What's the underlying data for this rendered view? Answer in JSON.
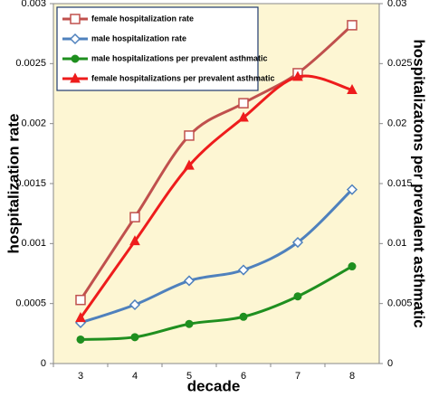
{
  "chart_data": {
    "type": "line",
    "xlabel": "decade",
    "ylabel": "hospitalization rate",
    "y2label": "hospitalizatons per prevalent asthmatic",
    "categories": [
      "3",
      "4",
      "5",
      "6",
      "7",
      "8"
    ],
    "ylim": [
      0,
      0.003
    ],
    "yticks": [
      0,
      0.0005,
      0.001,
      0.0015,
      0.002,
      0.0025,
      0.003
    ],
    "y2lim": [
      0,
      0.03
    ],
    "y2ticks": [
      0,
      0.005,
      0.01,
      0.015,
      0.02,
      0.025,
      0.03
    ],
    "legend": "upper left",
    "background": "#fdf6d3",
    "series": [
      {
        "name": "female hospitalization rate",
        "color": "#c0504d",
        "marker": "square",
        "values": [
          0.00053,
          0.00122,
          0.0019,
          0.00217,
          0.00242,
          0.00282
        ]
      },
      {
        "name": "male hospitalization rate",
        "color": "#4f81bd",
        "marker": "diamond",
        "values": [
          0.00034,
          0.00049,
          0.00069,
          0.00078,
          0.00101,
          0.00145
        ]
      },
      {
        "name": "male hospitalizations per prevalent asthmatic",
        "color": "#1f8f1f",
        "marker": "circle",
        "axis": "y2",
        "values": [
          0.002,
          0.0022,
          0.0033,
          0.0039,
          0.0056,
          0.0081
        ]
      },
      {
        "name": "female hospitalizations per prevalent asthmatic",
        "color": "#ee1c1c",
        "marker": "triangle",
        "axis": "y2",
        "values": [
          0.0038,
          0.0102,
          0.0165,
          0.0205,
          0.0239,
          0.0228
        ]
      }
    ]
  }
}
